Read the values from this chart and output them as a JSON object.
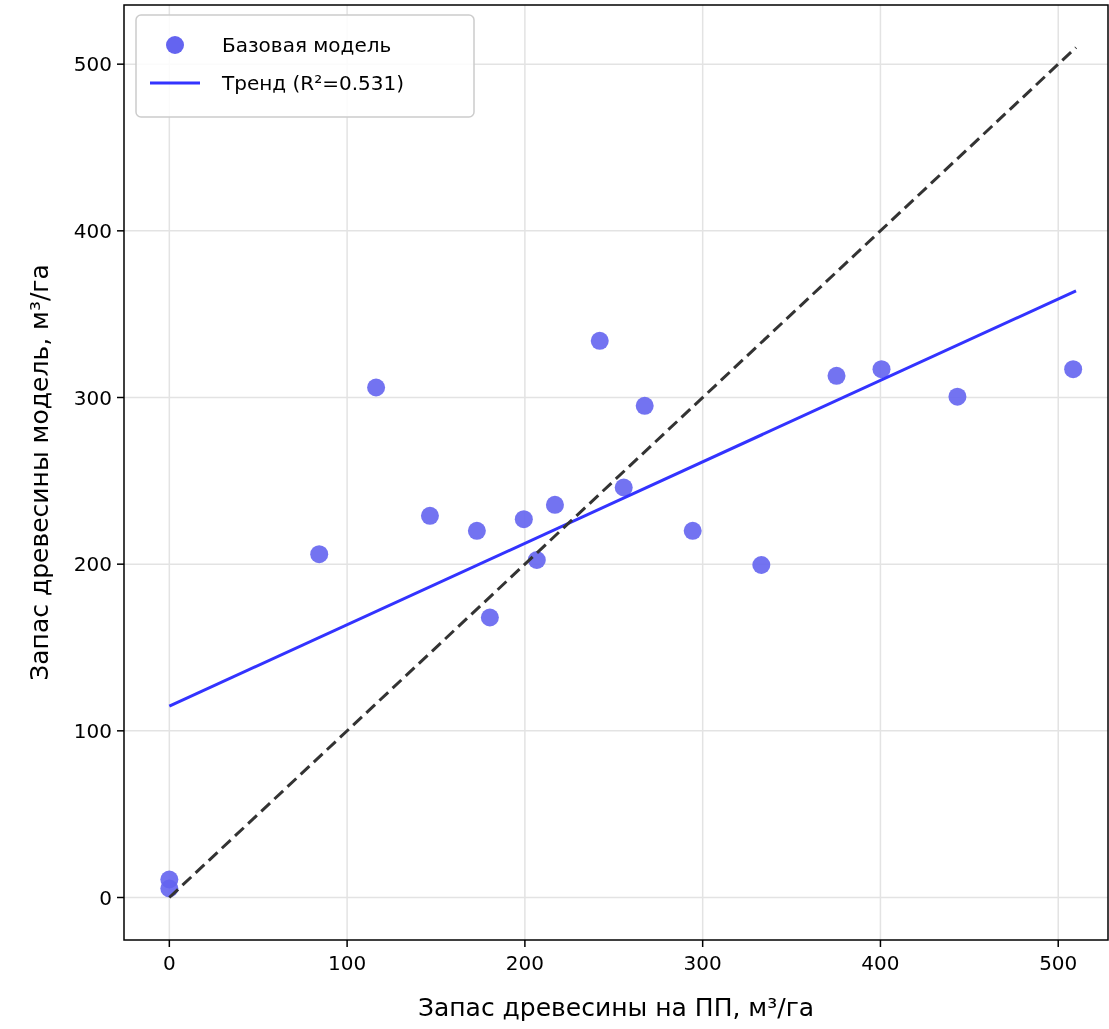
{
  "chart_data": {
    "type": "scatter",
    "xlabel": "Запас древесины на ПП, м³/га",
    "ylabel": "Запас древесины модель, м³/га",
    "xlim": [
      -25.5,
      528
    ],
    "ylim": [
      -25.5,
      535.5
    ],
    "xticks": [
      0,
      100,
      200,
      300,
      400,
      500
    ],
    "yticks": [
      0,
      100,
      200,
      300,
      400,
      500
    ],
    "grid": true,
    "legend": "top left",
    "series": [
      {
        "name": "Базовая модель",
        "color": "#6464f0",
        "marker": "circle",
        "x": [
          0,
          0,
          84.3,
          116.3,
          146.6,
          173,
          180.3,
          199.4,
          206.7,
          216.9,
          242.1,
          255.6,
          267.4,
          294.4,
          333,
          375.3,
          400.6,
          443.3,
          508.4
        ],
        "values": [
          10.8,
          5.4,
          206,
          306,
          229,
          220,
          168,
          227,
          202.5,
          235.6,
          334,
          246,
          295,
          220,
          199.5,
          313,
          317,
          300.5,
          317
        ]
      },
      {
        "name": "Тренд (R²=0.531)",
        "type": "line",
        "color": "#3333ff",
        "line_style": "solid",
        "x": [
          0,
          510
        ],
        "values": [
          114.8,
          364
        ]
      },
      {
        "type": "line",
        "color": "#333333",
        "line_style": "dashed",
        "x": [
          0,
          510
        ],
        "values": [
          0,
          510
        ]
      }
    ]
  }
}
